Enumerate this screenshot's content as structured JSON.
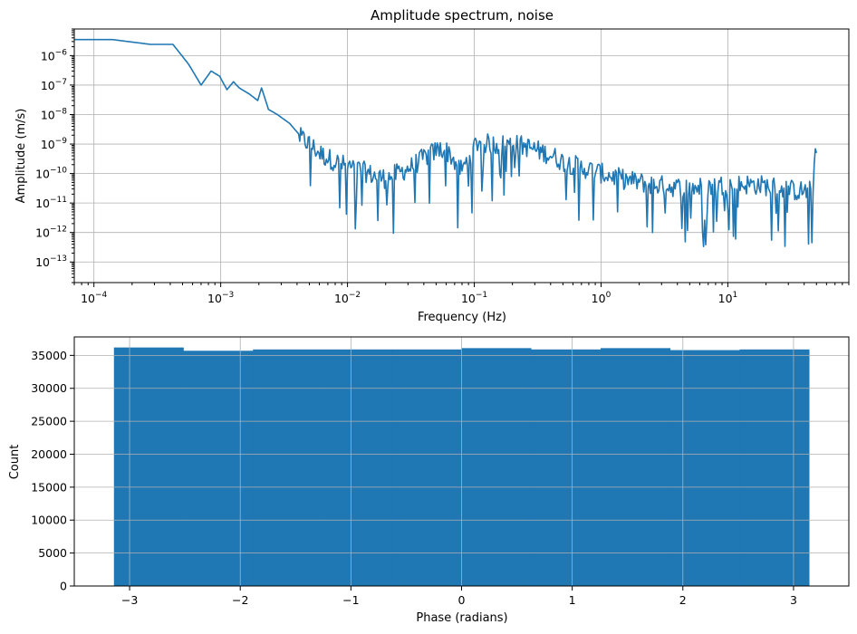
{
  "chart_data": [
    {
      "type": "line",
      "title": "Amplitude spectrum, noise",
      "xlabel": "Frequency (Hz)",
      "ylabel": "Amplitude (m/s)",
      "xscale": "log",
      "yscale": "log",
      "xlim": [
        7e-05,
        90
      ],
      "ylim": [
        2e-14,
        8e-06
      ],
      "grid": true,
      "color": "#1f77b4",
      "x_tick_values": [
        0.0001,
        0.001,
        0.01,
        0.1,
        1,
        10
      ],
      "x_tick_labels": [
        {
          "base": "10",
          "exp": "−4"
        },
        {
          "base": "10",
          "exp": "−3"
        },
        {
          "base": "10",
          "exp": "−2"
        },
        {
          "base": "10",
          "exp": "−1"
        },
        {
          "base": "10",
          "exp": "0"
        },
        {
          "base": "10",
          "exp": "1"
        }
      ],
      "y_tick_values": [
        1e-13,
        1e-12,
        1e-11,
        1e-10,
        1e-09,
        1e-08,
        1e-07,
        1e-06
      ],
      "y_tick_labels": [
        {
          "base": "10",
          "exp": "−13"
        },
        {
          "base": "10",
          "exp": "−12"
        },
        {
          "base": "10",
          "exp": "−11"
        },
        {
          "base": "10",
          "exp": "−10"
        },
        {
          "base": "10",
          "exp": "−9"
        },
        {
          "base": "10",
          "exp": "−8"
        },
        {
          "base": "10",
          "exp": "−7"
        },
        {
          "base": "10",
          "exp": "−6"
        }
      ],
      "x": [
        7e-05,
        0.00014,
        0.00028,
        0.00042,
        0.00056,
        0.0007,
        0.00084,
        0.00098,
        0.00112,
        0.00126,
        0.0014,
        0.00168,
        0.00196,
        0.0021,
        0.00238,
        0.0028,
        0.0035,
        0.0042,
        0.005,
        0.0063,
        0.008,
        0.01,
        0.013,
        0.016,
        0.02,
        0.025,
        0.032,
        0.04,
        0.05,
        0.056,
        0.063,
        0.07,
        0.08,
        0.09,
        0.1,
        0.11,
        0.125,
        0.15,
        0.2,
        0.25,
        0.32,
        0.4,
        0.5,
        0.63,
        0.8,
        1.0,
        1.3,
        1.6,
        2.0,
        2.5,
        3.2,
        4.0,
        5.0,
        6.3,
        8.0,
        10,
        13,
        16,
        20,
        25,
        30,
        35,
        40,
        45,
        47,
        48,
        49,
        50
      ],
      "y": [
        3.5e-06,
        3.5e-06,
        2.4e-06,
        2.4e-06,
        5e-07,
        1e-07,
        3e-07,
        2e-07,
        7e-08,
        1.3e-07,
        8e-08,
        5e-08,
        3e-08,
        8e-08,
        1.5e-08,
        1e-08,
        5e-09,
        2e-09,
        1.2e-09,
        5e-10,
        3e-10,
        2e-10,
        1.5e-10,
        1e-10,
        8e-11,
        1.2e-10,
        2e-10,
        4e-10,
        7e-10,
        8e-10,
        6e-10,
        3e-10,
        1.5e-10,
        4e-10,
        1e-09,
        1.5e-09,
        1.2e-09,
        1.1e-09,
        1.2e-09,
        1e-09,
        7e-10,
        5e-10,
        3e-10,
        2.2e-10,
        1.6e-10,
        1.2e-10,
        9e-11,
        7e-11,
        6e-11,
        5e-11,
        4.5e-11,
        4e-11,
        4e-11,
        4e-11,
        4.5e-11,
        5e-11,
        5e-11,
        5e-11,
        4.5e-11,
        4e-11,
        3.5e-11,
        3e-11,
        3e-11,
        3e-11,
        5e-11,
        2e-10,
        1e-09,
        5e-10
      ]
    },
    {
      "type": "bar",
      "title": "",
      "xlabel": "Phase (radians)",
      "ylabel": "Count",
      "xlim": [
        -3.5,
        3.5
      ],
      "ylim": [
        0,
        37800
      ],
      "grid": true,
      "color": "#1f77b4",
      "x_ticks": [
        -3,
        -2,
        -1,
        0,
        1,
        2,
        3
      ],
      "x_tick_labels": [
        "−3",
        "−2",
        "−1",
        "0",
        "1",
        "2",
        "3"
      ],
      "y_ticks": [
        0,
        5000,
        10000,
        15000,
        20000,
        25000,
        30000,
        35000
      ],
      "y_tick_labels": [
        "0",
        "5000",
        "10000",
        "15000",
        "20000",
        "25000",
        "30000",
        "35000"
      ],
      "bin_edges": [
        -3.1416,
        -2.5133,
        -1.885,
        -1.2566,
        -0.6283,
        0.0,
        0.6283,
        1.2566,
        1.885,
        2.5133,
        3.1416
      ],
      "values": [
        36200,
        35700,
        35900,
        35900,
        35900,
        36100,
        35900,
        36100,
        35800,
        35900
      ]
    }
  ]
}
